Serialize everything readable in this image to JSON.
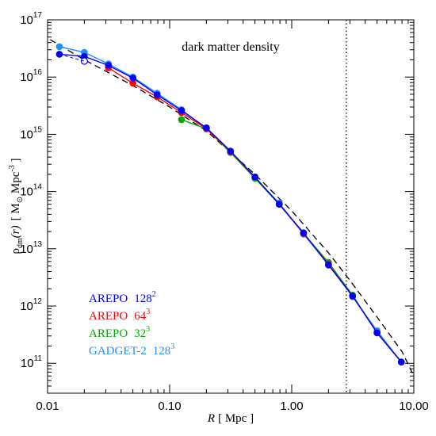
{
  "chart_data": {
    "type": "line",
    "title": "dark matter density",
    "x_scale": "log",
    "y_scale": "log",
    "xlim": [
      0.01,
      10.0
    ],
    "ylim": [
      30000000000.0,
      1e+17
    ],
    "x_ticks": [
      {
        "value": 0.01,
        "label": "0.01"
      },
      {
        "value": 0.1,
        "label": "0.10"
      },
      {
        "value": 1.0,
        "label": "1.00"
      },
      {
        "value": 10.0,
        "label": "10.00"
      }
    ],
    "y_ticks": [
      {
        "exp": 11,
        "label_base": "10",
        "label_exp": "11"
      },
      {
        "exp": 12,
        "label_base": "10",
        "label_exp": "12"
      },
      {
        "exp": 13,
        "label_base": "10",
        "label_exp": "13"
      },
      {
        "exp": 14,
        "label_base": "10",
        "label_exp": "14"
      },
      {
        "exp": 15,
        "label_base": "10",
        "label_exp": "15"
      },
      {
        "exp": 16,
        "label_base": "10",
        "label_exp": "16"
      },
      {
        "exp": 17,
        "label_base": "10",
        "label_exp": "17"
      }
    ],
    "xlabel": {
      "var": "R",
      "unit": "[ Mpc ]"
    },
    "ylabel": {
      "rho": "ρ",
      "sub": "dm",
      "arg": "(r)",
      "open": "[ M",
      "sun": "⊙",
      "mid": " Mpc",
      "exp": "-3",
      "close": " ]"
    },
    "vline": {
      "x": 2.8,
      "style": "dotted",
      "color": "#000000"
    },
    "reference_curve": {
      "style": "dashed",
      "color": "#000000",
      "x": [
        0.0105,
        0.02,
        0.05,
        0.1,
        0.2,
        0.5,
        1.0,
        2.0,
        3.0,
        5.0,
        8.0,
        10.0
      ],
      "y": [
        4.5e+16,
        2e+16,
        7100000000000000.0,
        3000000000000000.0,
        1150000000000000.0,
        200000000000000.0,
        46000000000000.0,
        8500000000000.0,
        2800000000000.0,
        640000000000.0,
        160000000000.0,
        60000000000.0
      ]
    },
    "legend_position": "lower-left",
    "series": [
      {
        "name": "AREPO",
        "res_base": "128",
        "res_exp": "2",
        "color": "#0000ff",
        "x": [
          0.0125,
          0.02,
          0.0315,
          0.05,
          0.079,
          0.125,
          0.2,
          0.315,
          0.5,
          0.79,
          1.25,
          2.0,
          3.15,
          5.0,
          7.9
        ],
        "y": [
          2.5e+16,
          2.3e+16,
          1.6e+16,
          9600000000000000.0,
          4900000000000000.0,
          2600000000000000.0,
          1300000000000000.0,
          510000000000000.0,
          180000000000000.0,
          60000000000000.0,
          19000000000000.0,
          5200000000000.0,
          1500000000000.0,
          340000000000.0,
          105000000000.0
        ],
        "open_markers": [
          {
            "x": 0.02,
            "y": 1.9e+16
          }
        ]
      },
      {
        "name": "AREPO",
        "res_base": "64",
        "res_exp": "3",
        "color": "#ff0000",
        "x": [
          0.0315,
          0.05,
          0.079,
          0.125,
          0.2,
          0.315,
          0.5,
          0.79,
          1.25,
          2.0,
          3.15,
          5.0,
          7.9
        ],
        "y": [
          1.45e+16,
          7800000000000000.0,
          4500000000000000.0,
          2400000000000000.0,
          1250000000000000.0,
          500000000000000.0,
          180000000000000.0,
          60000000000000.0,
          18500000000000.0,
          5400000000000.0,
          1500000000000.0,
          340000000000.0,
          105000000000.0
        ]
      },
      {
        "name": "AREPO",
        "res_base": "32",
        "res_exp": "3",
        "color": "#00aa00",
        "x": [
          0.125,
          0.2,
          0.315,
          0.5,
          0.79,
          1.25,
          2.0,
          3.15,
          5.0,
          7.9
        ],
        "y": [
          1800000000000000.0,
          1250000000000000.0,
          480000000000000.0,
          170000000000000.0,
          60000000000000.0,
          18500000000000.0,
          5800000000000.0,
          1550000000000.0,
          340000000000.0,
          105000000000.0
        ]
      },
      {
        "name": "GADGET-2",
        "res_base": "128",
        "res_exp": "3",
        "color": "#1e90ff",
        "x": [
          0.0125,
          0.02,
          0.0315,
          0.05,
          0.079,
          0.125,
          0.2,
          0.315,
          0.5,
          0.79,
          1.25,
          2.0,
          3.15,
          5.0,
          7.9
        ],
        "y": [
          3.4e+16,
          2.7e+16,
          1.7e+16,
          1e+16,
          5200000000000000.0,
          2700000000000000.0,
          1250000000000000.0,
          500000000000000.0,
          175000000000000.0,
          63000000000000.0,
          18000000000000.0,
          5300000000000.0,
          1450000000000.0,
          370000000000.0,
          105000000000.0
        ]
      }
    ]
  }
}
